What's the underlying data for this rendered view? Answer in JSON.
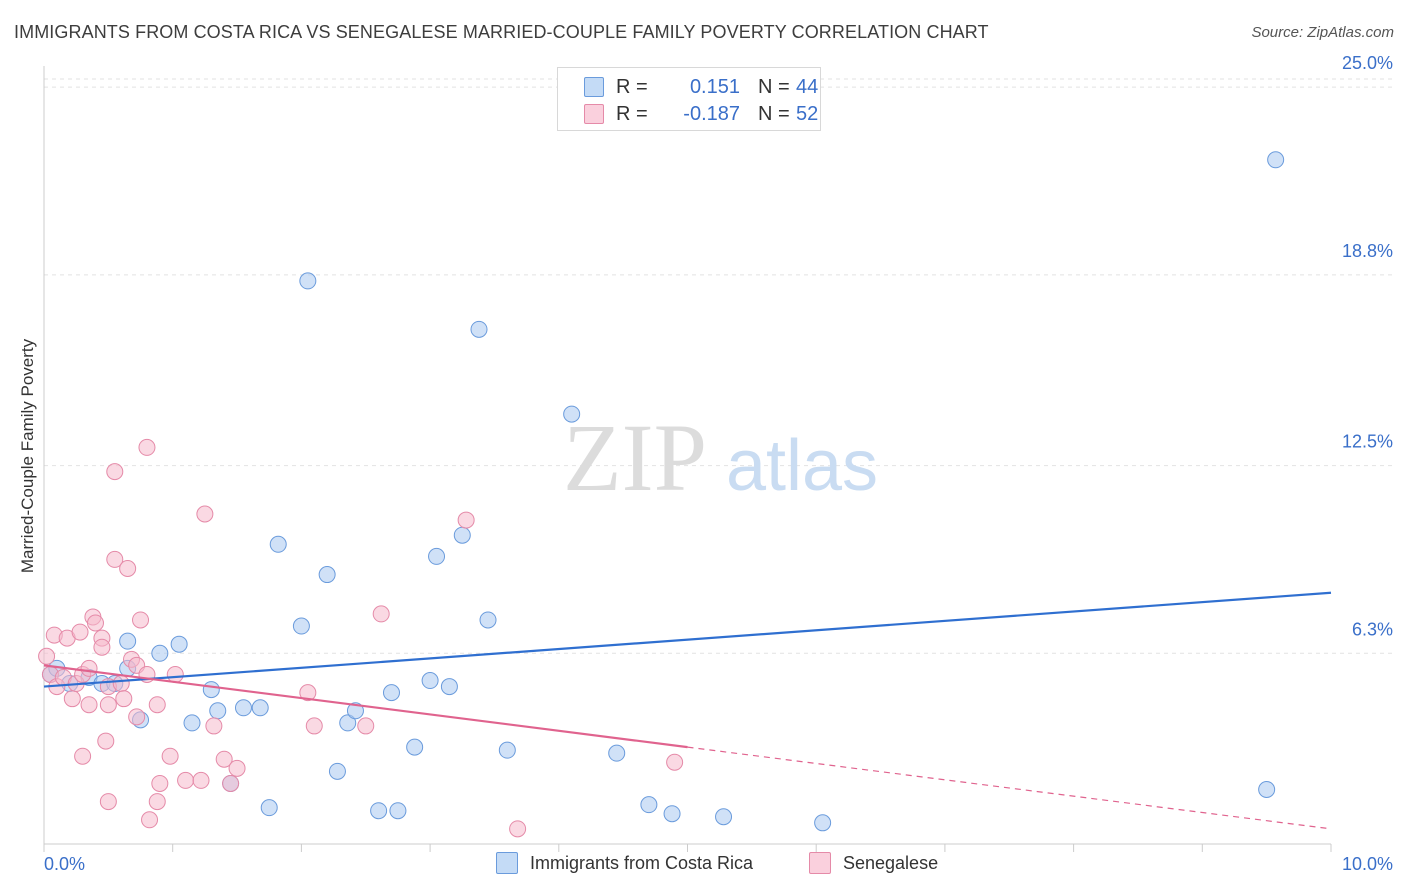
{
  "chart_data": {
    "type": "scatter",
    "title": "IMMIGRANTS FROM COSTA RICA VS SENEGALESE MARRIED-COUPLE FAMILY POVERTY CORRELATION CHART",
    "source": "Source: ZipAtlas.com",
    "xlabel": "",
    "ylabel": "Married-Couple Family Poverty",
    "xlim": [
      0,
      10
    ],
    "ylim": [
      0,
      25.5
    ],
    "x_tick_labels": {
      "min": "0.0%",
      "max": "10.0%"
    },
    "y_ticks": [
      {
        "value": 6.3,
        "label": "6.3%"
      },
      {
        "value": 12.5,
        "label": "12.5%"
      },
      {
        "value": 18.8,
        "label": "18.8%"
      },
      {
        "value": 25.0,
        "label": "25.0%"
      }
    ],
    "watermark": {
      "zip": "ZIP",
      "atlas": "atlas"
    },
    "legend": {
      "r_label": "R =",
      "n_label": "N =",
      "entries": [
        {
          "name": "Immigrants from Costa Rica",
          "r": "0.151",
          "n": "44",
          "color": "#a9c8f0",
          "stroke": "#5b8fd6"
        },
        {
          "name": "Senegalese",
          "r": "-0.187",
          "n": "52",
          "color": "#f6b9cc",
          "stroke": "#e07a9c"
        }
      ]
    },
    "series": [
      {
        "name": "Immigrants from Costa Rica",
        "color": "#a9c8f0",
        "stroke": "#6a9bdc",
        "trend": {
          "x": [
            0.0,
            10.0
          ],
          "y": [
            5.2,
            8.3
          ],
          "color": "#2f6fd0",
          "dashed_from": null
        },
        "points": [
          [
            0.05,
            5.6
          ],
          [
            0.1,
            5.8
          ],
          [
            0.2,
            5.3
          ],
          [
            0.35,
            5.5
          ],
          [
            0.45,
            5.3
          ],
          [
            0.55,
            5.3
          ],
          [
            0.65,
            5.8
          ],
          [
            0.65,
            6.7
          ],
          [
            0.75,
            4.1
          ],
          [
            0.9,
            6.3
          ],
          [
            1.05,
            6.6
          ],
          [
            1.15,
            4.0
          ],
          [
            1.3,
            5.1
          ],
          [
            1.35,
            4.4
          ],
          [
            1.45,
            2.0
          ],
          [
            1.55,
            4.5
          ],
          [
            1.68,
            4.5
          ],
          [
            1.75,
            1.2
          ],
          [
            1.82,
            9.9
          ],
          [
            2.0,
            7.2
          ],
          [
            2.05,
            18.6
          ],
          [
            2.2,
            8.9
          ],
          [
            2.28,
            2.4
          ],
          [
            2.36,
            4.0
          ],
          [
            2.42,
            4.4
          ],
          [
            2.6,
            1.1
          ],
          [
            2.7,
            5.0
          ],
          [
            2.75,
            1.1
          ],
          [
            2.88,
            3.2
          ],
          [
            3.0,
            5.4
          ],
          [
            3.05,
            9.5
          ],
          [
            3.15,
            5.2
          ],
          [
            3.25,
            10.2
          ],
          [
            3.38,
            17.0
          ],
          [
            3.45,
            7.4
          ],
          [
            3.6,
            3.1
          ],
          [
            4.1,
            14.2
          ],
          [
            4.45,
            3.0
          ],
          [
            4.7,
            1.3
          ],
          [
            4.88,
            1.0
          ],
          [
            5.28,
            0.9
          ],
          [
            6.05,
            0.7
          ],
          [
            9.5,
            1.8
          ],
          [
            9.57,
            22.6
          ]
        ]
      },
      {
        "name": "Senegalese",
        "color": "#f6b9cc",
        "stroke": "#e58aa8",
        "trend": {
          "x": [
            0.0,
            5.0,
            10.0
          ],
          "y": [
            5.9,
            3.2,
            0.5
          ],
          "color": "#e0638e",
          "dashed_from": 5.0
        },
        "points": [
          [
            0.02,
            6.2
          ],
          [
            0.05,
            5.6
          ],
          [
            0.08,
            6.9
          ],
          [
            0.1,
            5.2
          ],
          [
            0.15,
            5.5
          ],
          [
            0.18,
            6.8
          ],
          [
            0.22,
            4.8
          ],
          [
            0.25,
            5.3
          ],
          [
            0.28,
            7.0
          ],
          [
            0.3,
            5.6
          ],
          [
            0.3,
            2.9
          ],
          [
            0.35,
            4.6
          ],
          [
            0.35,
            5.8
          ],
          [
            0.38,
            7.5
          ],
          [
            0.4,
            7.3
          ],
          [
            0.45,
            6.8
          ],
          [
            0.45,
            6.5
          ],
          [
            0.48,
            3.4
          ],
          [
            0.5,
            4.6
          ],
          [
            0.5,
            5.2
          ],
          [
            0.5,
            1.4
          ],
          [
            0.55,
            9.4
          ],
          [
            0.55,
            12.3
          ],
          [
            0.6,
            5.3
          ],
          [
            0.62,
            4.8
          ],
          [
            0.65,
            9.1
          ],
          [
            0.68,
            6.1
          ],
          [
            0.72,
            5.9
          ],
          [
            0.72,
            4.2
          ],
          [
            0.75,
            7.4
          ],
          [
            0.8,
            13.1
          ],
          [
            0.8,
            5.6
          ],
          [
            0.82,
            0.8
          ],
          [
            0.88,
            4.6
          ],
          [
            0.88,
            1.4
          ],
          [
            0.9,
            2.0
          ],
          [
            0.98,
            2.9
          ],
          [
            1.02,
            5.6
          ],
          [
            1.1,
            2.1
          ],
          [
            1.22,
            2.1
          ],
          [
            1.25,
            10.9
          ],
          [
            1.32,
            3.9
          ],
          [
            1.4,
            2.8
          ],
          [
            1.45,
            2.0
          ],
          [
            1.5,
            2.5
          ],
          [
            2.05,
            5.0
          ],
          [
            2.1,
            3.9
          ],
          [
            2.5,
            3.9
          ],
          [
            2.62,
            7.6
          ],
          [
            3.28,
            10.7
          ],
          [
            4.9,
            2.7
          ],
          [
            3.68,
            0.5
          ]
        ]
      }
    ]
  }
}
